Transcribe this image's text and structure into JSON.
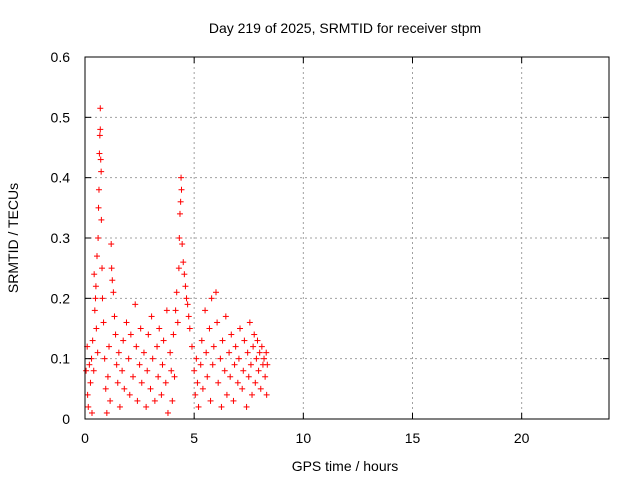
{
  "chart_data": {
    "type": "scatter",
    "title": "Day 219 of 2025, SRMTID for receiver stpm",
    "xlabel": "GPS time / hours",
    "ylabel": "SRMTID / TECUs",
    "xlim": [
      0,
      24
    ],
    "ylim": [
      0,
      0.6
    ],
    "xticks": [
      0,
      5,
      10,
      15,
      20
    ],
    "yticks": [
      0,
      0.1,
      0.2,
      0.3,
      0.4,
      0.5,
      0.6
    ],
    "grid": true,
    "marker": "+",
    "marker_color": "#ff0000",
    "series": [
      {
        "name": "SRMTID",
        "points": [
          [
            0.05,
            0.08
          ],
          [
            0.1,
            0.12
          ],
          [
            0.12,
            0.04
          ],
          [
            0.15,
            0.02
          ],
          [
            0.2,
            0.09
          ],
          [
            0.25,
            0.06
          ],
          [
            0.3,
            0.1
          ],
          [
            0.32,
            0.01
          ],
          [
            0.35,
            0.13
          ],
          [
            0.4,
            0.08
          ],
          [
            0.42,
            0.24
          ],
          [
            0.45,
            0.18
          ],
          [
            0.48,
            0.2
          ],
          [
            0.5,
            0.22
          ],
          [
            0.52,
            0.15
          ],
          [
            0.55,
            0.27
          ],
          [
            0.58,
            0.11
          ],
          [
            0.6,
            0.3
          ],
          [
            0.62,
            0.35
          ],
          [
            0.64,
            0.38
          ],
          [
            0.66,
            0.44
          ],
          [
            0.68,
            0.47
          ],
          [
            0.7,
            0.48
          ],
          [
            0.7,
            0.515
          ],
          [
            0.72,
            0.43
          ],
          [
            0.74,
            0.41
          ],
          [
            0.75,
            0.33
          ],
          [
            0.78,
            0.25
          ],
          [
            0.8,
            0.2
          ],
          [
            0.85,
            0.16
          ],
          [
            0.9,
            0.1
          ],
          [
            0.95,
            0.05
          ],
          [
            1.0,
            0.01
          ],
          [
            1.05,
            0.07
          ],
          [
            1.1,
            0.12
          ],
          [
            1.15,
            0.03
          ],
          [
            1.2,
            0.29
          ],
          [
            1.22,
            0.25
          ],
          [
            1.25,
            0.23
          ],
          [
            1.3,
            0.21
          ],
          [
            1.35,
            0.17
          ],
          [
            1.4,
            0.14
          ],
          [
            1.45,
            0.09
          ],
          [
            1.5,
            0.06
          ],
          [
            1.55,
            0.11
          ],
          [
            1.6,
            0.02
          ],
          [
            1.7,
            0.08
          ],
          [
            1.75,
            0.13
          ],
          [
            1.8,
            0.05
          ],
          [
            1.9,
            0.16
          ],
          [
            2.0,
            0.1
          ],
          [
            2.05,
            0.04
          ],
          [
            2.1,
            0.14
          ],
          [
            2.2,
            0.07
          ],
          [
            2.3,
            0.19
          ],
          [
            2.35,
            0.12
          ],
          [
            2.4,
            0.03
          ],
          [
            2.5,
            0.09
          ],
          [
            2.55,
            0.15
          ],
          [
            2.6,
            0.06
          ],
          [
            2.7,
            0.11
          ],
          [
            2.8,
            0.02
          ],
          [
            2.85,
            0.08
          ],
          [
            2.9,
            0.14
          ],
          [
            3.0,
            0.05
          ],
          [
            3.05,
            0.17
          ],
          [
            3.1,
            0.1
          ],
          [
            3.2,
            0.03
          ],
          [
            3.3,
            0.12
          ],
          [
            3.35,
            0.07
          ],
          [
            3.4,
            0.15
          ],
          [
            3.5,
            0.04
          ],
          [
            3.55,
            0.09
          ],
          [
            3.6,
            0.13
          ],
          [
            3.7,
            0.06
          ],
          [
            3.75,
            0.18
          ],
          [
            3.8,
            0.01
          ],
          [
            3.9,
            0.11
          ],
          [
            3.95,
            0.08
          ],
          [
            4.0,
            0.03
          ],
          [
            4.05,
            0.14
          ],
          [
            4.1,
            0.07
          ],
          [
            4.15,
            0.18
          ],
          [
            4.2,
            0.21
          ],
          [
            4.25,
            0.16
          ],
          [
            4.3,
            0.25
          ],
          [
            4.32,
            0.3
          ],
          [
            4.35,
            0.34
          ],
          [
            4.38,
            0.36
          ],
          [
            4.4,
            0.4
          ],
          [
            4.42,
            0.38
          ],
          [
            4.45,
            0.29
          ],
          [
            4.5,
            0.26
          ],
          [
            4.55,
            0.24
          ],
          [
            4.6,
            0.22
          ],
          [
            4.65,
            0.2
          ],
          [
            4.7,
            0.19
          ],
          [
            4.75,
            0.17
          ],
          [
            4.8,
            0.15
          ],
          [
            4.9,
            0.12
          ],
          [
            5.0,
            0.08
          ],
          [
            5.05,
            0.04
          ],
          [
            5.1,
            0.1
          ],
          [
            5.15,
            0.06
          ],
          [
            5.2,
            0.02
          ],
          [
            5.3,
            0.09
          ],
          [
            5.35,
            0.13
          ],
          [
            5.4,
            0.05
          ],
          [
            5.5,
            0.18
          ],
          [
            5.55,
            0.11
          ],
          [
            5.6,
            0.07
          ],
          [
            5.7,
            0.15
          ],
          [
            5.75,
            0.03
          ],
          [
            5.8,
            0.2
          ],
          [
            5.85,
            0.09
          ],
          [
            5.9,
            0.12
          ],
          [
            6.0,
            0.21
          ],
          [
            6.05,
            0.16
          ],
          [
            6.1,
            0.06
          ],
          [
            6.2,
            0.1
          ],
          [
            6.25,
            0.02
          ],
          [
            6.3,
            0.13
          ],
          [
            6.4,
            0.08
          ],
          [
            6.45,
            0.17
          ],
          [
            6.5,
            0.04
          ],
          [
            6.6,
            0.11
          ],
          [
            6.65,
            0.07
          ],
          [
            6.7,
            0.14
          ],
          [
            6.8,
            0.03
          ],
          [
            6.85,
            0.09
          ],
          [
            6.9,
            0.12
          ],
          [
            7.0,
            0.06
          ],
          [
            7.05,
            0.1
          ],
          [
            7.1,
            0.15
          ],
          [
            7.2,
            0.05
          ],
          [
            7.25,
            0.08
          ],
          [
            7.3,
            0.13
          ],
          [
            7.4,
            0.02
          ],
          [
            7.45,
            0.11
          ],
          [
            7.5,
            0.07
          ],
          [
            7.55,
            0.16
          ],
          [
            7.6,
            0.09
          ],
          [
            7.65,
            0.04
          ],
          [
            7.7,
            0.12
          ],
          [
            7.75,
            0.14
          ],
          [
            7.8,
            0.06
          ],
          [
            7.85,
            0.1
          ],
          [
            7.9,
            0.13
          ],
          [
            7.95,
            0.08
          ],
          [
            8.0,
            0.11
          ],
          [
            8.05,
            0.05
          ],
          [
            8.1,
            0.12
          ],
          [
            8.15,
            0.09
          ],
          [
            8.2,
            0.1
          ],
          [
            8.25,
            0.07
          ],
          [
            8.3,
            0.11
          ],
          [
            8.32,
            0.04
          ],
          [
            8.35,
            0.09
          ]
        ]
      }
    ]
  }
}
